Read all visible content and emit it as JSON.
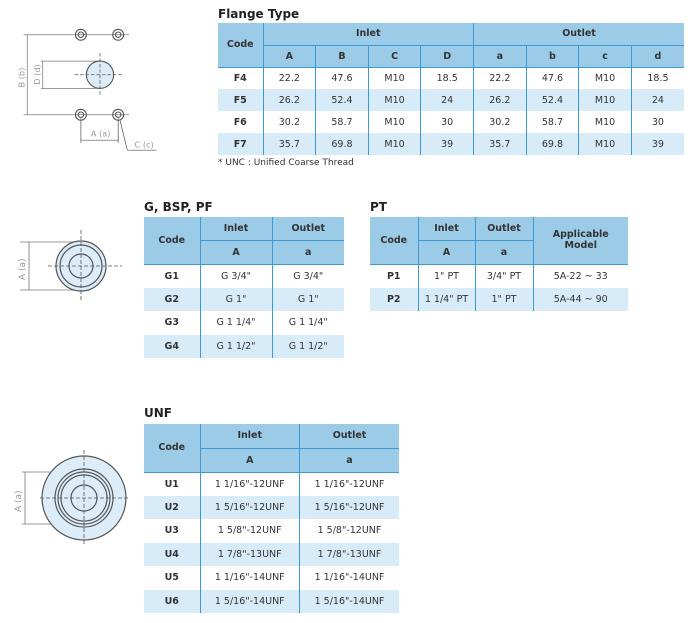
{
  "flange": {
    "title": "Flange Type",
    "code_header": "Code",
    "inlet_header": "Inlet",
    "outlet_header": "Outlet",
    "sub_headers": [
      "A",
      "B",
      "C",
      "D",
      "a",
      "b",
      "c",
      "d"
    ],
    "rows": [
      {
        "code": "F4",
        "values": [
          "22.2",
          "47.6",
          "M10",
          "18.5",
          "22.2",
          "47.6",
          "M10",
          "18.5"
        ]
      },
      {
        "code": "F5",
        "values": [
          "26.2",
          "52.4",
          "M10",
          "24",
          "26.2",
          "52.4",
          "M10",
          "24"
        ]
      },
      {
        "code": "F6",
        "values": [
          "30.2",
          "58.7",
          "M10",
          "30",
          "30.2",
          "58.7",
          "M10",
          "30"
        ]
      },
      {
        "code": "F7",
        "values": [
          "35.7",
          "69.8",
          "M10",
          "39",
          "35.7",
          "69.8",
          "M10",
          "39"
        ]
      }
    ],
    "note": "* UNC : Unified Coarse Thread",
    "diagram_labels": {
      "b": "B (b)",
      "d": "D (d)",
      "a": "A (a)",
      "c": "C (c)"
    }
  },
  "g_bsp": {
    "title": "G, BSP, PF",
    "code_header": "Code",
    "inlet_header": "Inlet",
    "outlet_header": "Outlet",
    "sub_headers": [
      "A",
      "a"
    ],
    "rows": [
      {
        "code": "G1",
        "values": [
          "G 3/4\"",
          "G 3/4\""
        ]
      },
      {
        "code": "G2",
        "values": [
          "G 1\"",
          "G 1\""
        ]
      },
      {
        "code": "G3",
        "values": [
          "G 1 1/4\"",
          "G 1 1/4\""
        ]
      },
      {
        "code": "G4",
        "values": [
          "G 1 1/2\"",
          "G 1 1/2\""
        ]
      }
    ],
    "diagram_label": "A (a)"
  },
  "pt": {
    "title": "PT",
    "code_header": "Code",
    "inlet_header": "Inlet",
    "outlet_header": "Outlet",
    "model_header": "Applicable Model",
    "sub_headers": [
      "A",
      "a"
    ],
    "rows": [
      {
        "code": "P1",
        "values": [
          "1\" PT",
          "3/4\" PT",
          "5A-22 ~ 33"
        ]
      },
      {
        "code": "P2",
        "values": [
          "1 1/4\" PT",
          "1\" PT",
          "5A-44 ~ 90"
        ]
      }
    ]
  },
  "unf": {
    "title": "UNF",
    "code_header": "Code",
    "inlet_header": "Inlet",
    "outlet_header": "Outlet",
    "sub_headers": [
      "A",
      "a"
    ],
    "rows": [
      {
        "code": "U1",
        "values": [
          "1 1/16\"-12UNF",
          "1 1/16\"-12UNF"
        ]
      },
      {
        "code": "U2",
        "values": [
          "1 5/16\"-12UNF",
          "1 5/16\"-12UNF"
        ]
      },
      {
        "code": "U3",
        "values": [
          "1 5/8\"-12UNF",
          "1 5/8\"-12UNF"
        ]
      },
      {
        "code": "U4",
        "values": [
          "1 7/8\"-13UNF",
          "1 7/8\"-13UNF"
        ]
      },
      {
        "code": "U5",
        "values": [
          "1 1/16\"-14UNF",
          "1 1/16\"-14UNF"
        ]
      },
      {
        "code": "U6",
        "values": [
          "1 5/16\"-14UNF",
          "1 5/16\"-14UNF"
        ]
      }
    ],
    "diagram_label": "A (a)"
  },
  "colors": {
    "header": "#9ccbe8",
    "alt_row": "#d8ebf8",
    "border": "#3b9ad6"
  }
}
